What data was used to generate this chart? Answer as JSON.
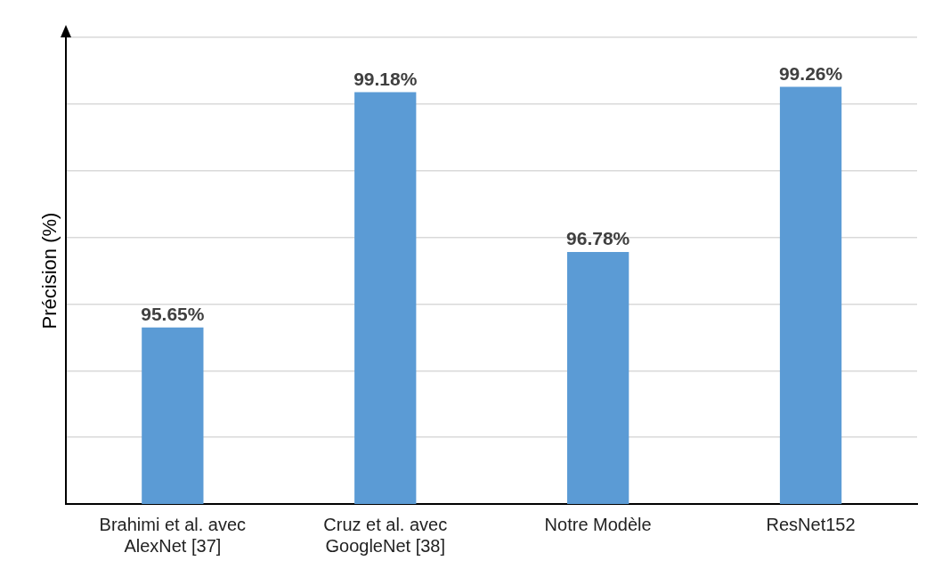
{
  "chart_data": {
    "type": "bar",
    "ylabel": "Précision (%)",
    "categories": [
      "Brahimi et al. avec AlexNet [37]",
      "Cruz et al. avec GoogleNet [38]",
      "Notre Modèle",
      "ResNet152"
    ],
    "values": [
      95.65,
      99.18,
      96.78,
      99.26
    ],
    "color": "#5b9bd5",
    "value_labels": [
      "95.65%",
      "99.18%",
      "96.78%",
      "99.26%"
    ],
    "ylim": [
      93,
      100
    ],
    "yticks": [
      {
        "value": 93,
        "label": null
      },
      {
        "value": 94,
        "label": null
      },
      {
        "value": 95,
        "label": null
      },
      {
        "value": 96,
        "label": null
      },
      {
        "value": 97,
        "label": null
      },
      {
        "value": 98,
        "label": null
      },
      {
        "value": 99,
        "label": null
      },
      {
        "value": 100,
        "label": null
      }
    ],
    "grid": "y",
    "legend": false
  }
}
